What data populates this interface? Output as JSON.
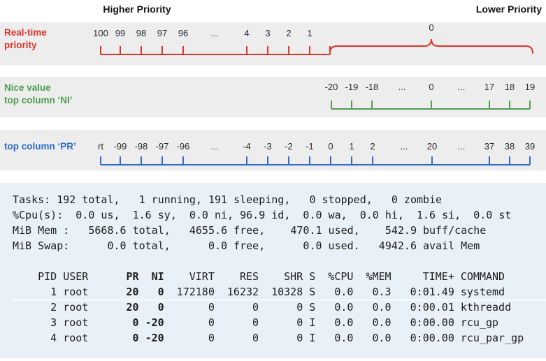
{
  "header": {
    "left": "Higher Priority",
    "right": "Lower Priority"
  },
  "bands": [
    {
      "id": "realtime-priority",
      "label_lines": [
        "Real-time",
        "priority"
      ],
      "color": "#df352a",
      "ticks": [
        "100",
        "99",
        "98",
        "97",
        "96",
        "...",
        "4",
        "3",
        "2",
        "1"
      ],
      "brace_label": "0"
    },
    {
      "id": "nice-value",
      "label_lines": [
        "Nice value",
        "top column ‘NI’"
      ],
      "color": "#4f9d50",
      "ticks": [
        "-20",
        "-19",
        "-18",
        "...",
        "0",
        "...",
        "17",
        "18",
        "19"
      ]
    },
    {
      "id": "top-column-pr",
      "label_lines": [
        "top column ‘PR’"
      ],
      "color": "#2e6bd1",
      "ticks": [
        "rt",
        "-99",
        "-98",
        "-97",
        "-96",
        "...",
        "-4",
        "-3",
        "-2",
        "-1",
        "0",
        "1",
        "2",
        "...",
        "20",
        "...",
        "37",
        "38",
        "39"
      ]
    }
  ],
  "terminal": {
    "summary_lines": [
      "Tasks: 192 total,   1 running, 191 sleeping,   0 stopped,   0 zombie",
      "%Cpu(s):  0.0 us,  1.6 sy,  0.0 ni, 96.9 id,  0.0 wa,  0.0 hi,  1.6 si,  0.0 st",
      "MiB Mem :   5668.6 total,   4655.6 free,    470.1 used,    542.9 buff/cache",
      "MiB Swap:      0.0 total,      0.0 free,      0.0 used.   4942.6 avail Mem"
    ],
    "table": {
      "columns": [
        "PID",
        "USER",
        "PR",
        "NI",
        "VIRT",
        "RES",
        "SHR",
        "S",
        "%CPU",
        "%MEM",
        "TIME+",
        "COMMAND"
      ],
      "rows": [
        [
          "1",
          "root",
          "20",
          "0",
          "172180",
          "16232",
          "10328",
          "S",
          "0.0",
          "0.3",
          "0:01.49",
          "systemd"
        ],
        [
          "2",
          "root",
          "20",
          "0",
          "0",
          "0",
          "0",
          "S",
          "0.0",
          "0.0",
          "0:00.01",
          "kthreadd"
        ],
        [
          "3",
          "root",
          "0",
          "-20",
          "0",
          "0",
          "0",
          "I",
          "0.0",
          "0.0",
          "0:00.00",
          "rcu_gp"
        ],
        [
          "4",
          "root",
          "0",
          "-20",
          "0",
          "0",
          "0",
          "I",
          "0.0",
          "0.0",
          "0:00.00",
          "rcu_par_gp"
        ]
      ]
    }
  }
}
